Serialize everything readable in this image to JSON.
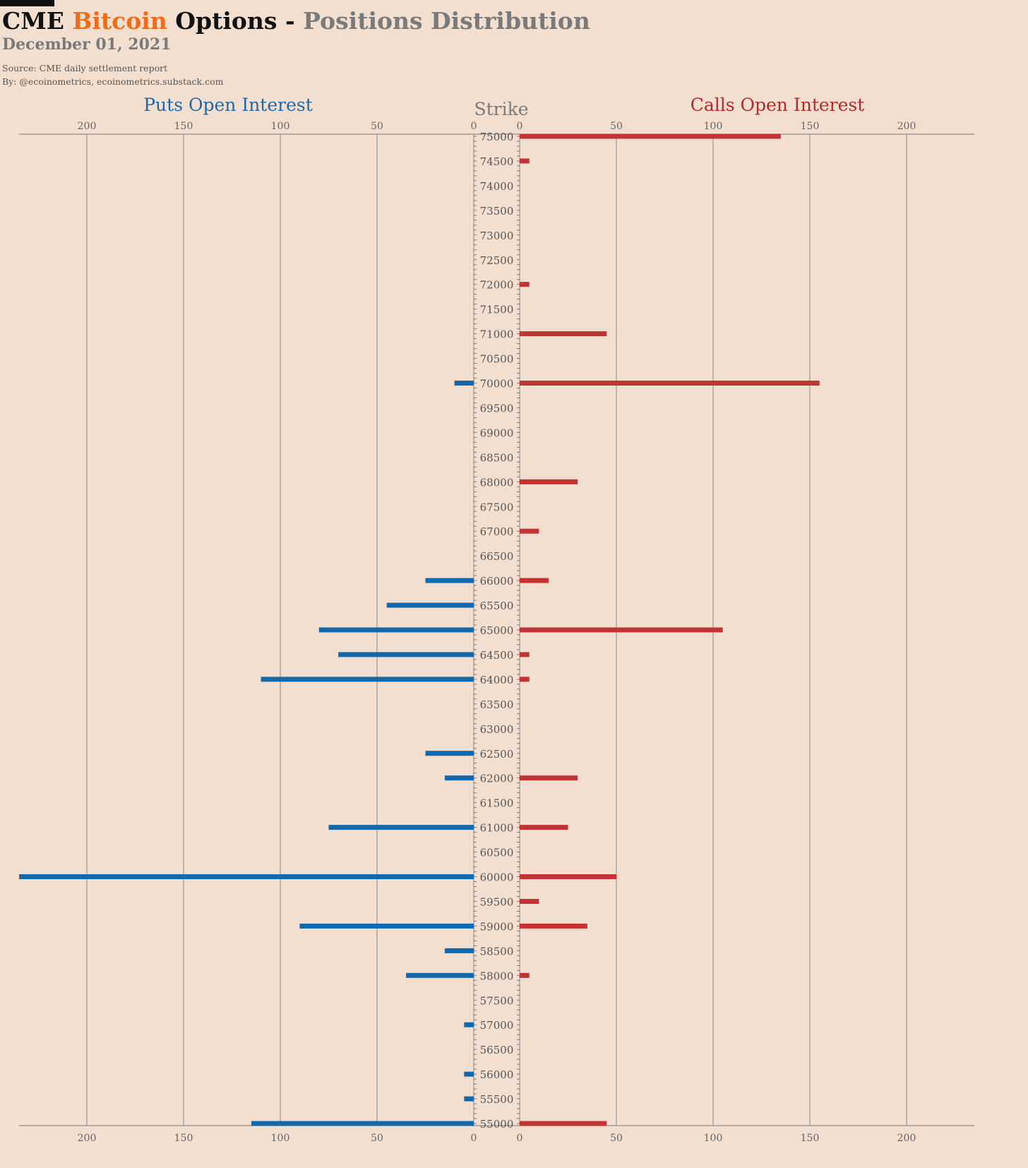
{
  "header": {
    "title_part1": "CME",
    "title_part2": "Bitcoin",
    "title_part3": "Options",
    "title_part4": "-",
    "title_part5": "Positions Distribution",
    "subtitle": "December 01, 2021",
    "source": "Source: CME daily settlement report",
    "byline": "By: @ecoinometrics, ecoinometrics.substack.com"
  },
  "colors": {
    "background": "#f2dfd0",
    "puts": "#1268aa",
    "calls": "#c13434",
    "accent": "#ef6c1a",
    "grid": "#888888"
  },
  "chart_data": {
    "type": "bar",
    "orientation": "horizontal-butterfly",
    "left_panel_label": "Puts Open Interest",
    "right_panel_label": "Calls Open Interest",
    "center_label": "Strike",
    "xlim": [
      0,
      235
    ],
    "xticks": [
      0,
      50,
      100,
      150,
      200
    ],
    "grid": true,
    "categories": [
      75000,
      74500,
      74000,
      73500,
      73000,
      72500,
      72000,
      71500,
      71000,
      70500,
      70000,
      69500,
      69000,
      68500,
      68000,
      67500,
      67000,
      66500,
      66000,
      65500,
      65000,
      64500,
      64000,
      63500,
      63000,
      62500,
      62000,
      61500,
      61000,
      60500,
      60000,
      59500,
      59000,
      58500,
      58000,
      57500,
      57000,
      56500,
      56000,
      55500,
      55000
    ],
    "series": [
      {
        "name": "Puts Open Interest",
        "values": [
          0,
          0,
          0,
          0,
          0,
          0,
          0,
          0,
          0,
          0,
          10,
          0,
          0,
          0,
          0,
          0,
          0,
          0,
          25,
          45,
          80,
          70,
          110,
          0,
          0,
          25,
          15,
          0,
          75,
          0,
          235,
          0,
          90,
          15,
          35,
          0,
          5,
          0,
          5,
          5,
          115
        ]
      },
      {
        "name": "Calls Open Interest",
        "values": [
          135,
          5,
          0,
          0,
          0,
          0,
          5,
          0,
          45,
          0,
          155,
          0,
          0,
          0,
          30,
          0,
          10,
          0,
          15,
          0,
          105,
          5,
          5,
          0,
          0,
          0,
          30,
          0,
          25,
          0,
          50,
          10,
          35,
          0,
          5,
          0,
          0,
          0,
          0,
          0,
          45
        ]
      }
    ]
  }
}
